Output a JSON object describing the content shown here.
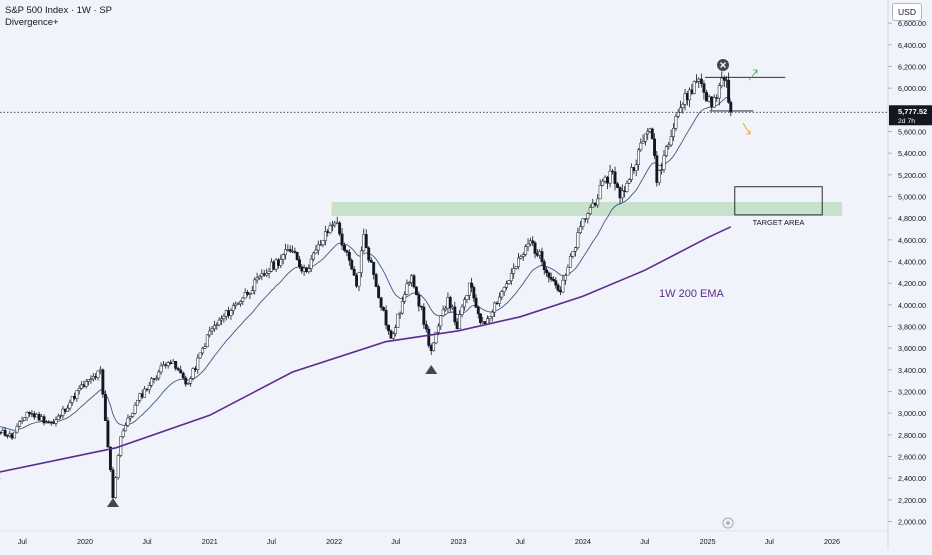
{
  "header": {
    "title": "S&P 500 Index · 1W · SP",
    "indicator": "Divergence+",
    "currency": "USD"
  },
  "price_label": {
    "value": "5,777.52",
    "countdown": "2d 7h"
  },
  "colors": {
    "background": "#f0f3fa",
    "candle": "#131722",
    "ema_short": "#3d5a8a",
    "ema_long": "#5b2d8e",
    "target_zone": "#b9dbb9",
    "grid_text": "#131722"
  },
  "chart_data": {
    "type": "candlestick",
    "title": "S&P 500 Index · 1W · SP",
    "ylim": [
      1940,
      6740
    ],
    "y_ticks": [
      2000,
      2200,
      2400,
      2600,
      2800,
      3000,
      3200,
      3400,
      3600,
      3800,
      4000,
      4200,
      4400,
      4600,
      4800,
      5000,
      5200,
      5400,
      5600,
      5800,
      6000,
      6200,
      6400,
      6600
    ],
    "y_tick_labels": [
      "2,000.00",
      "2,200.00",
      "2,400.00",
      "2,600.00",
      "2,800.00",
      "3,000.00",
      "3,200.00",
      "3,400.00",
      "3,600.00",
      "3,800.00",
      "4,000.00",
      "4,200.00",
      "4,400.00",
      "4,600.00",
      "4,800.00",
      "5,000.00",
      "5,200.00",
      "5,400.00",
      "5,600.00",
      "5,800.00",
      "6,000.00",
      "6,200.00",
      "6,400.00",
      "6,600.00"
    ],
    "x_ticks": [
      {
        "label": "Jul",
        "date": "2019-07-01"
      },
      {
        "label": "2020",
        "date": "2020-01-01"
      },
      {
        "label": "Jul",
        "date": "2020-07-01"
      },
      {
        "label": "2021",
        "date": "2021-01-01"
      },
      {
        "label": "Jul",
        "date": "2021-07-01"
      },
      {
        "label": "2022",
        "date": "2022-01-01"
      },
      {
        "label": "Jul",
        "date": "2022-07-01"
      },
      {
        "label": "2023",
        "date": "2023-01-01"
      },
      {
        "label": "Jul",
        "date": "2023-07-01"
      },
      {
        "label": "2024",
        "date": "2024-01-01"
      },
      {
        "label": "Jul",
        "date": "2024-07-01"
      },
      {
        "label": "2025",
        "date": "2025-01-01"
      },
      {
        "label": "Jul",
        "date": "2025-07-01"
      },
      {
        "label": "2026",
        "date": "2026-01-01"
      }
    ],
    "price_keypoints": [
      [
        "2019-04-01",
        2880
      ],
      [
        "2019-06-01",
        2780
      ],
      [
        "2019-07-15",
        3010
      ],
      [
        "2019-10-01",
        2900
      ],
      [
        "2019-12-15",
        3220
      ],
      [
        "2020-02-15",
        3380
      ],
      [
        "2020-03-23",
        2230
      ],
      [
        "2020-04-15",
        2800
      ],
      [
        "2020-06-10",
        3150
      ],
      [
        "2020-09-01",
        3500
      ],
      [
        "2020-10-30",
        3270
      ],
      [
        "2021-01-01",
        3750
      ],
      [
        "2021-04-01",
        4050
      ],
      [
        "2021-07-01",
        4350
      ],
      [
        "2021-09-01",
        4530
      ],
      [
        "2021-10-05",
        4300
      ],
      [
        "2022-01-03",
        4790
      ],
      [
        "2022-03-08",
        4170
      ],
      [
        "2022-03-29",
        4630
      ],
      [
        "2022-06-17",
        3670
      ],
      [
        "2022-08-16",
        4300
      ],
      [
        "2022-10-13",
        3570
      ],
      [
        "2022-12-01",
        4080
      ],
      [
        "2022-12-28",
        3800
      ],
      [
        "2023-02-02",
        4180
      ],
      [
        "2023-03-13",
        3810
      ],
      [
        "2023-07-31",
        4590
      ],
      [
        "2023-10-27",
        4120
      ],
      [
        "2024-01-01",
        4770
      ],
      [
        "2024-03-28",
        5250
      ],
      [
        "2024-04-19",
        4970
      ],
      [
        "2024-07-16",
        5670
      ],
      [
        "2024-08-05",
        5150
      ],
      [
        "2024-09-30",
        5760
      ],
      [
        "2024-12-06",
        6100
      ],
      [
        "2025-01-13",
        5820
      ],
      [
        "2025-02-19",
        6140
      ],
      [
        "2025-03-10",
        5780
      ]
    ],
    "series": [
      {
        "name": "1W 200 EMA",
        "points": [
          [
            "2019-04-01",
            2440
          ],
          [
            "2020-04-01",
            2680
          ],
          [
            "2021-01-01",
            2980
          ],
          [
            "2021-09-01",
            3380
          ],
          [
            "2022-06-01",
            3660
          ],
          [
            "2023-01-01",
            3760
          ],
          [
            "2023-07-01",
            3890
          ],
          [
            "2024-01-01",
            4080
          ],
          [
            "2024-07-01",
            4320
          ],
          [
            "2025-01-01",
            4620
          ],
          [
            "2025-03-10",
            4720
          ]
        ]
      }
    ],
    "last_price": 5777.52,
    "annotations": [
      {
        "text": "1W 200 EMA"
      },
      {
        "text": "TARGET AREA",
        "price_range": [
          4830,
          5090
        ],
        "date_range": [
          "2025-03-10",
          "2025-12-15"
        ]
      },
      {
        "text": "",
        "kind": "resistance_zone",
        "price_range": [
          4820,
          4950
        ],
        "date_range": [
          "2021-12-01",
          "2026-03-01"
        ]
      },
      {
        "text": "",
        "kind": "range_top",
        "price": 6100,
        "date_range": [
          "2024-12-01",
          "2025-07-01"
        ]
      },
      {
        "text": "",
        "kind": "range_bottom",
        "price": 5790,
        "date_range": [
          "2025-01-01",
          "2025-07-01"
        ]
      }
    ],
    "markers": [
      {
        "kind": "triangle-up",
        "date": "2020-03-23"
      },
      {
        "kind": "triangle-up",
        "date": "2022-10-13"
      }
    ],
    "grid": false,
    "legend": "none"
  }
}
